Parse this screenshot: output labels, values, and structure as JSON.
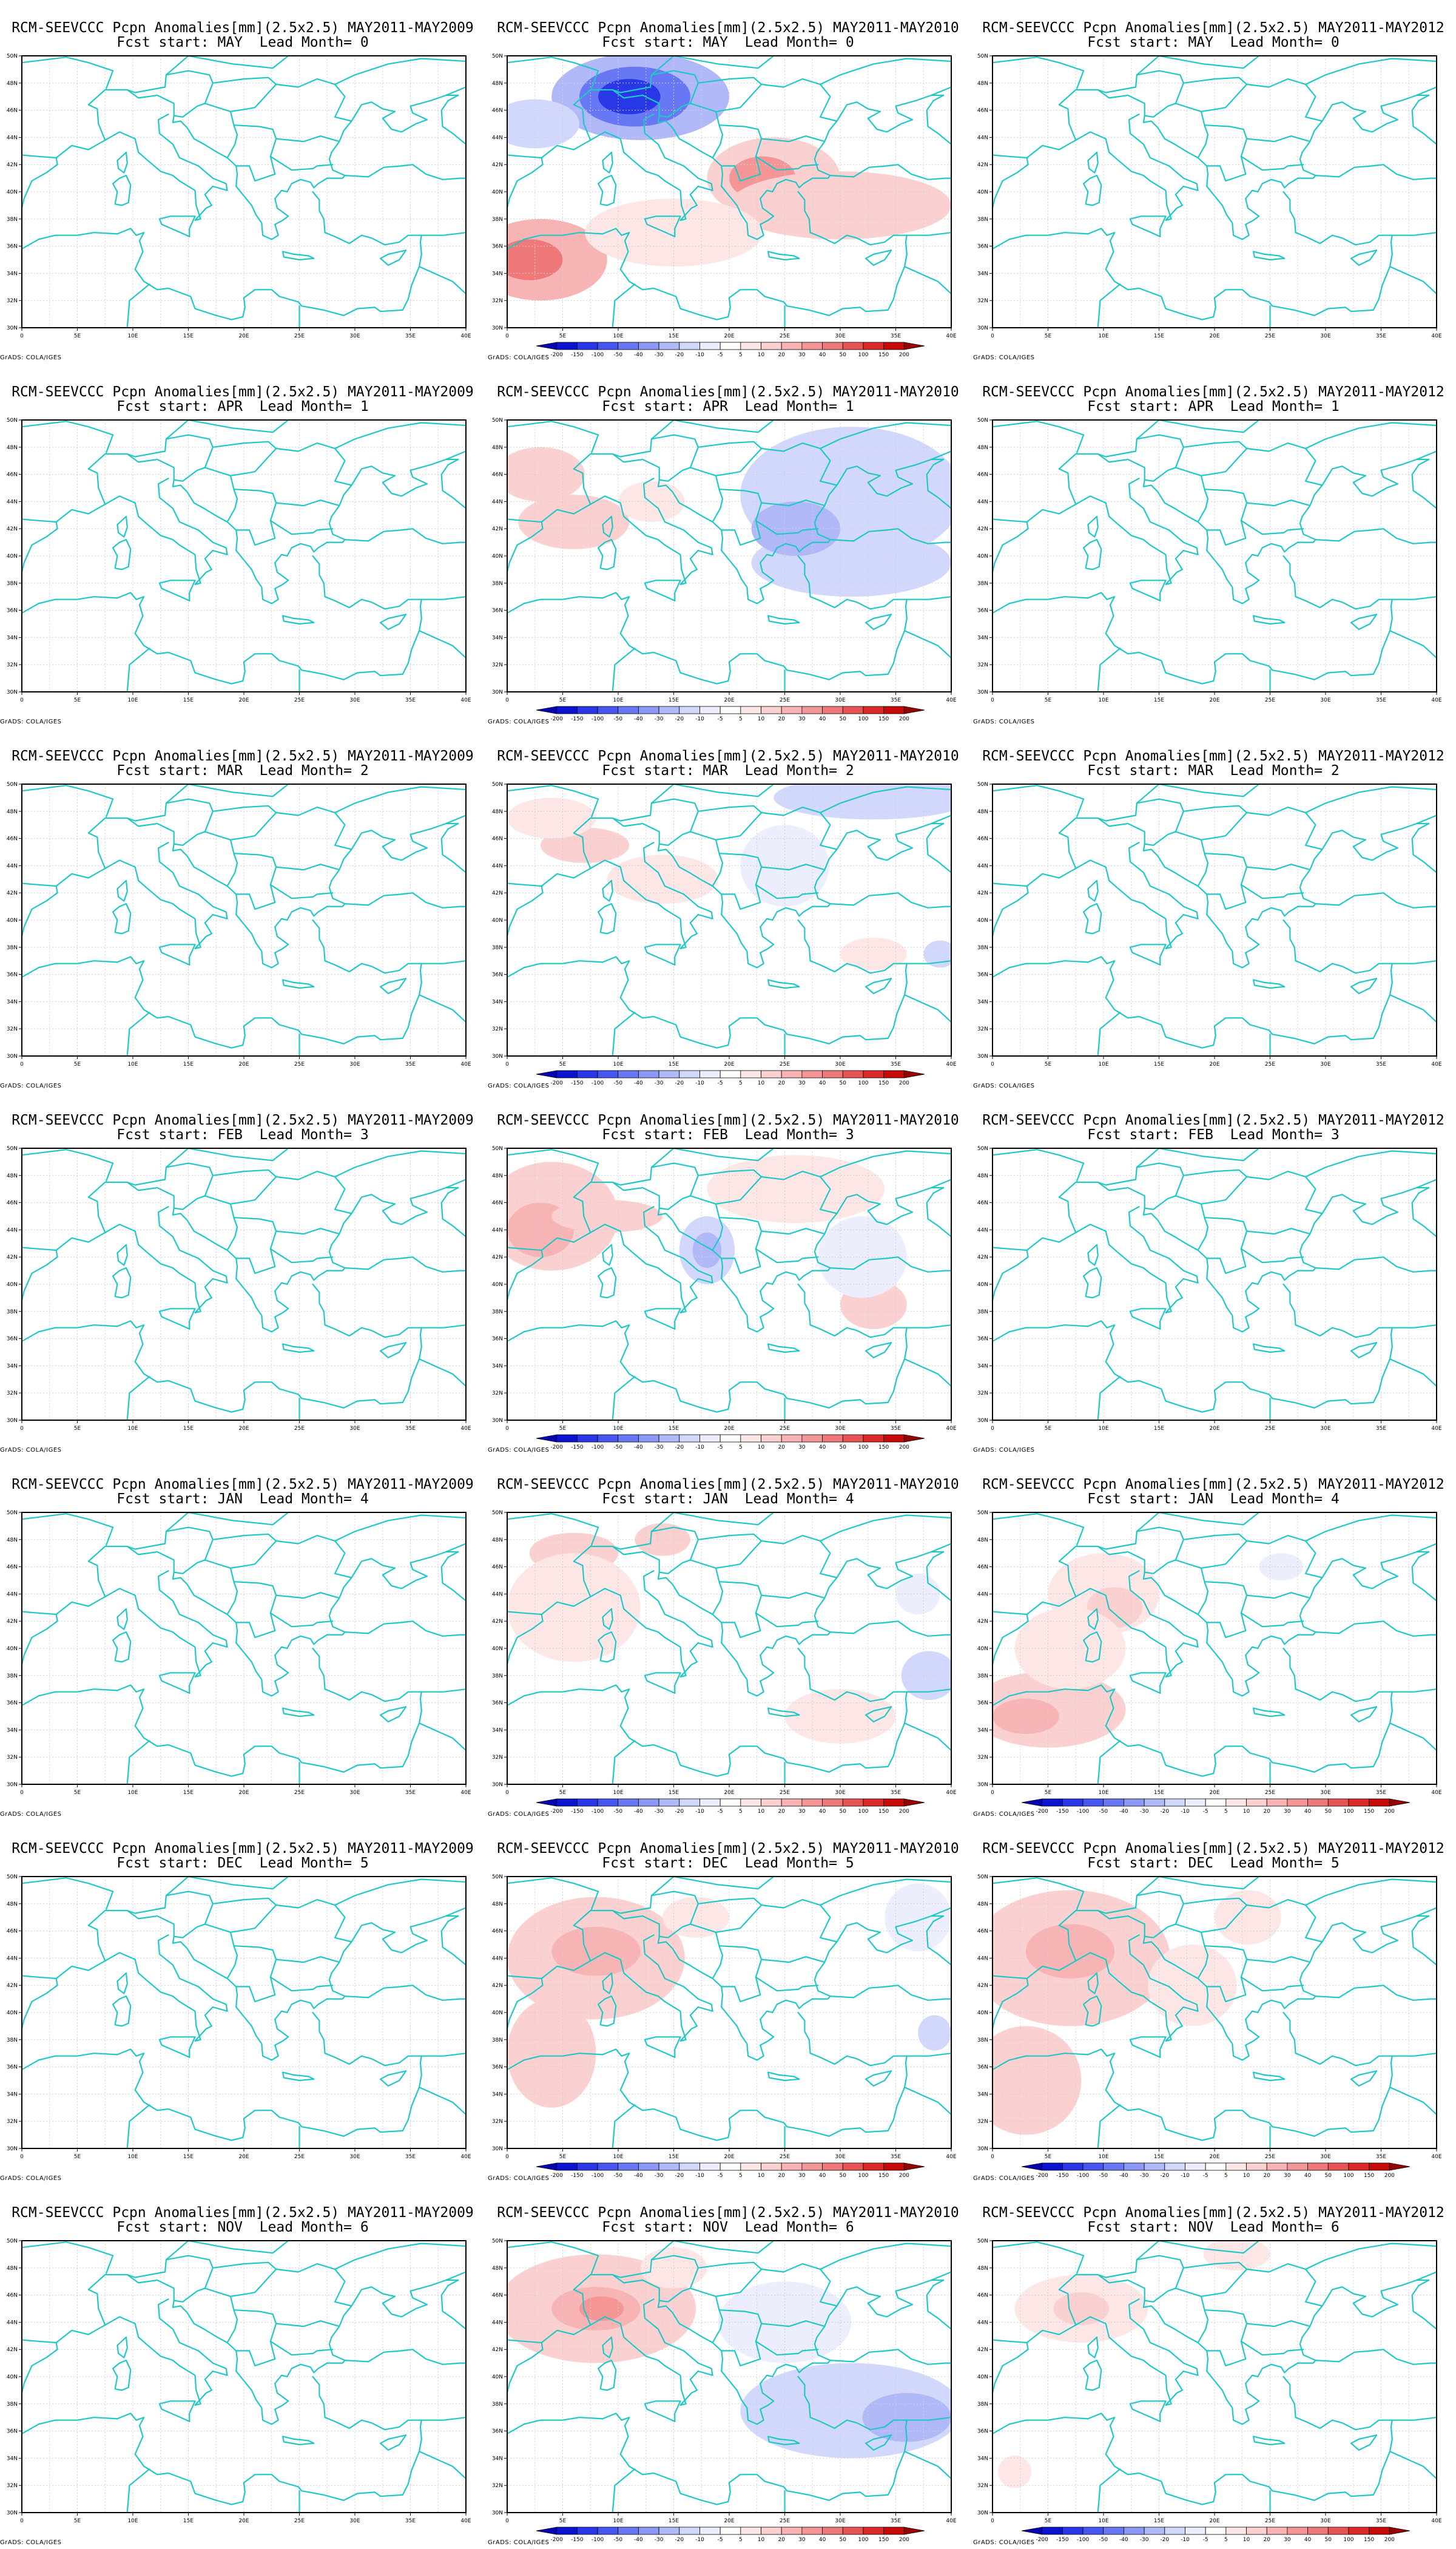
{
  "page": {
    "background": "#ffffff"
  },
  "colors": {
    "coastline": "#1fc7c7",
    "grid": "#cfcfcf",
    "frame": "#000000"
  },
  "chart_data": {
    "type": "heatmap",
    "title_prefix": "RCM-SEEVCCC Pcpn Anomalies[mm](2.5x2.5)",
    "columns": [
      "MAY2011-MAY2009",
      "MAY2011-MAY2010",
      "MAY2011-MAY2012"
    ],
    "rows": [
      {
        "fcst_start": "MAY",
        "lead": 0
      },
      {
        "fcst_start": "APR",
        "lead": 1
      },
      {
        "fcst_start": "MAR",
        "lead": 2
      },
      {
        "fcst_start": "FEB",
        "lead": 3
      },
      {
        "fcst_start": "JAN",
        "lead": 4
      },
      {
        "fcst_start": "DEC",
        "lead": 5
      },
      {
        "fcst_start": "NOV",
        "lead": 6
      }
    ],
    "subtitle_template": "Fcst start: {m}  Lead Month= {n}",
    "xticks": [
      "0",
      "5E",
      "10E",
      "15E",
      "20E",
      "25E",
      "30E",
      "35E",
      "40E"
    ],
    "yticks": [
      "50N",
      "48N",
      "46N",
      "44N",
      "42N",
      "40N",
      "38N",
      "36N",
      "34N",
      "32N",
      "30N"
    ],
    "xlim": [
      0,
      40
    ],
    "ylim": [
      30,
      50
    ],
    "grid": true,
    "credit": "GrADS: COLA/IGES",
    "colorbar": {
      "levels": [
        "-200",
        "-150",
        "-100",
        "-50",
        "-40",
        "-30",
        "-20",
        "-10",
        "-5",
        "5",
        "10",
        "20",
        "30",
        "40",
        "50",
        "100",
        "150",
        "200"
      ],
      "colors": [
        "#0000b4",
        "#0a14d2",
        "#2838e6",
        "#4656f0",
        "#6878f4",
        "#8c98f6",
        "#b0b8f8",
        "#d2d8fb",
        "#eceefd",
        "#ffffff",
        "#fde6e6",
        "#fbd0d0",
        "#f8b4b4",
        "#f49696",
        "#ef7878",
        "#e85454",
        "#dc2828",
        "#c80a0a",
        "#960000"
      ]
    },
    "panels": [
      {
        "row": 0,
        "col": 0,
        "has_colorbar": false,
        "anomalies": []
      },
      {
        "row": 0,
        "col": 1,
        "has_colorbar": true,
        "anomalies": [
          {
            "lon": 12,
            "lat": 47,
            "rx": 8,
            "ry": 3.2,
            "level": -3
          },
          {
            "lon": 11.5,
            "lat": 47,
            "rx": 5,
            "ry": 2.2,
            "level": -5
          },
          {
            "lon": 11,
            "lat": 47,
            "rx": 2.8,
            "ry": 1.3,
            "level": -7
          },
          {
            "lon": 2.5,
            "lat": 45,
            "rx": 4,
            "ry": 1.8,
            "level": -2
          },
          {
            "lon": 24,
            "lat": 41,
            "rx": 6,
            "ry": 3,
            "level": 2
          },
          {
            "lon": 23,
            "lat": 41,
            "rx": 3,
            "ry": 1.6,
            "level": 4
          },
          {
            "lon": 3,
            "lat": 35,
            "rx": 6,
            "ry": 3,
            "level": 3
          },
          {
            "lon": 2,
            "lat": 35,
            "rx": 3,
            "ry": 1.5,
            "level": 5
          },
          {
            "lon": 30,
            "lat": 39,
            "rx": 10,
            "ry": 2.5,
            "level": 2
          },
          {
            "lon": 15,
            "lat": 37,
            "rx": 8,
            "ry": 2.5,
            "level": 1
          }
        ]
      },
      {
        "row": 0,
        "col": 2,
        "has_colorbar": false,
        "anomalies": []
      },
      {
        "row": 1,
        "col": 0,
        "has_colorbar": false,
        "anomalies": []
      },
      {
        "row": 1,
        "col": 1,
        "has_colorbar": true,
        "anomalies": [
          {
            "lon": 31,
            "lat": 44.5,
            "rx": 10,
            "ry": 5,
            "level": -2
          },
          {
            "lon": 31,
            "lat": 39.5,
            "rx": 9,
            "ry": 2.5,
            "level": -2
          },
          {
            "lon": 26,
            "lat": 42,
            "rx": 4,
            "ry": 2,
            "level": -3
          },
          {
            "lon": 3,
            "lat": 46,
            "rx": 4,
            "ry": 2,
            "level": 2
          },
          {
            "lon": 6,
            "lat": 42.5,
            "rx": 5,
            "ry": 2,
            "level": 2
          },
          {
            "lon": 13,
            "lat": 44,
            "rx": 3,
            "ry": 1.5,
            "level": 1
          }
        ]
      },
      {
        "row": 1,
        "col": 2,
        "has_colorbar": false,
        "anomalies": []
      },
      {
        "row": 2,
        "col": 0,
        "has_colorbar": false,
        "anomalies": []
      },
      {
        "row": 2,
        "col": 1,
        "has_colorbar": true,
        "anomalies": [
          {
            "lon": 33,
            "lat": 49,
            "rx": 9,
            "ry": 1.6,
            "level": -2
          },
          {
            "lon": 7,
            "lat": 45.5,
            "rx": 4,
            "ry": 1.3,
            "level": 2
          },
          {
            "lon": 4,
            "lat": 47.5,
            "rx": 4,
            "ry": 1.5,
            "level": 1
          },
          {
            "lon": 14,
            "lat": 43,
            "rx": 5,
            "ry": 1.8,
            "level": 1
          },
          {
            "lon": 33,
            "lat": 37.5,
            "rx": 3,
            "ry": 1.2,
            "level": 1
          },
          {
            "lon": 39,
            "lat": 37.5,
            "rx": 1.5,
            "ry": 1,
            "level": -2
          },
          {
            "lon": 25,
            "lat": 44,
            "rx": 4,
            "ry": 3,
            "level": -1
          }
        ]
      },
      {
        "row": 2,
        "col": 2,
        "has_colorbar": false,
        "anomalies": []
      },
      {
        "row": 3,
        "col": 0,
        "has_colorbar": false,
        "anomalies": []
      },
      {
        "row": 3,
        "col": 1,
        "has_colorbar": true,
        "anomalies": [
          {
            "lon": 4,
            "lat": 45,
            "rx": 6,
            "ry": 4,
            "level": 2
          },
          {
            "lon": 3,
            "lat": 44,
            "rx": 3,
            "ry": 2,
            "level": 3
          },
          {
            "lon": 9,
            "lat": 45,
            "rx": 5,
            "ry": 1.2,
            "level": 2
          },
          {
            "lon": 18,
            "lat": 42.5,
            "rx": 2.5,
            "ry": 2.5,
            "level": -2
          },
          {
            "lon": 18,
            "lat": 42.5,
            "rx": 1.3,
            "ry": 1.3,
            "level": -3
          },
          {
            "lon": 33,
            "lat": 38.5,
            "rx": 3,
            "ry": 1.8,
            "level": 2
          },
          {
            "lon": 26,
            "lat": 47,
            "rx": 8,
            "ry": 2.5,
            "level": 1
          },
          {
            "lon": 32,
            "lat": 42,
            "rx": 4,
            "ry": 3,
            "level": -1
          }
        ]
      },
      {
        "row": 3,
        "col": 2,
        "has_colorbar": false,
        "anomalies": []
      },
      {
        "row": 4,
        "col": 0,
        "has_colorbar": false,
        "anomalies": []
      },
      {
        "row": 4,
        "col": 1,
        "has_colorbar": true,
        "anomalies": [
          {
            "lon": 6,
            "lat": 47,
            "rx": 4,
            "ry": 1.5,
            "level": 2
          },
          {
            "lon": 14,
            "lat": 48,
            "rx": 2.5,
            "ry": 1.2,
            "level": 2
          },
          {
            "lon": 6,
            "lat": 43,
            "rx": 6,
            "ry": 4,
            "level": 1
          },
          {
            "lon": 38,
            "lat": 38,
            "rx": 2.5,
            "ry": 1.8,
            "level": -2
          },
          {
            "lon": 37,
            "lat": 44,
            "rx": 2,
            "ry": 1.5,
            "level": -1
          },
          {
            "lon": 30,
            "lat": 35,
            "rx": 5,
            "ry": 2,
            "level": 1
          }
        ]
      },
      {
        "row": 4,
        "col": 2,
        "has_colorbar": true,
        "anomalies": [
          {
            "lon": 5,
            "lat": 35.5,
            "rx": 7,
            "ry": 2.8,
            "level": 2
          },
          {
            "lon": 3,
            "lat": 35,
            "rx": 3,
            "ry": 1.3,
            "level": 3
          },
          {
            "lon": 10,
            "lat": 44,
            "rx": 5,
            "ry": 3,
            "level": 1
          },
          {
            "lon": 11,
            "lat": 43,
            "rx": 2.5,
            "ry": 1.5,
            "level": 2
          },
          {
            "lon": 7,
            "lat": 40,
            "rx": 5,
            "ry": 3,
            "level": 1
          },
          {
            "lon": 26,
            "lat": 46,
            "rx": 2,
            "ry": 1,
            "level": -1
          }
        ]
      },
      {
        "row": 5,
        "col": 0,
        "has_colorbar": false,
        "anomalies": []
      },
      {
        "row": 5,
        "col": 1,
        "has_colorbar": true,
        "anomalies": [
          {
            "lon": 8,
            "lat": 44,
            "rx": 8,
            "ry": 4.5,
            "level": 2
          },
          {
            "lon": 8,
            "lat": 44.5,
            "rx": 4,
            "ry": 1.8,
            "level": 3
          },
          {
            "lon": 4,
            "lat": 37,
            "rx": 4,
            "ry": 4,
            "level": 2
          },
          {
            "lon": 37,
            "lat": 47,
            "rx": 3,
            "ry": 2.5,
            "level": -1
          },
          {
            "lon": 38.5,
            "lat": 38.5,
            "rx": 1.5,
            "ry": 1.3,
            "level": -2
          },
          {
            "lon": 17,
            "lat": 47,
            "rx": 3,
            "ry": 1.5,
            "level": 1
          }
        ]
      },
      {
        "row": 5,
        "col": 2,
        "has_colorbar": true,
        "anomalies": [
          {
            "lon": 7,
            "lat": 44,
            "rx": 9,
            "ry": 5,
            "level": 2
          },
          {
            "lon": 7,
            "lat": 44.5,
            "rx": 4,
            "ry": 2,
            "level": 3
          },
          {
            "lon": 3,
            "lat": 35,
            "rx": 5,
            "ry": 4,
            "level": 2
          },
          {
            "lon": 18,
            "lat": 42,
            "rx": 4,
            "ry": 3,
            "level": 1
          },
          {
            "lon": 23,
            "lat": 47,
            "rx": 3,
            "ry": 2,
            "level": 1
          }
        ]
      },
      {
        "row": 6,
        "col": 0,
        "has_colorbar": false,
        "anomalies": []
      },
      {
        "row": 6,
        "col": 1,
        "has_colorbar": true,
        "anomalies": [
          {
            "lon": 8,
            "lat": 45,
            "rx": 9,
            "ry": 4,
            "level": 2
          },
          {
            "lon": 8,
            "lat": 45,
            "rx": 4,
            "ry": 1.6,
            "level": 3
          },
          {
            "lon": 8.5,
            "lat": 45,
            "rx": 2,
            "ry": 0.9,
            "level": 4
          },
          {
            "lon": 31,
            "lat": 37.5,
            "rx": 10,
            "ry": 3.5,
            "level": -2
          },
          {
            "lon": 36,
            "lat": 37,
            "rx": 4,
            "ry": 1.8,
            "level": -3
          },
          {
            "lon": 25,
            "lat": 44,
            "rx": 6,
            "ry": 3,
            "level": -1
          },
          {
            "lon": 15,
            "lat": 48,
            "rx": 3,
            "ry": 1.5,
            "level": 1
          }
        ]
      },
      {
        "row": 6,
        "col": 2,
        "has_colorbar": true,
        "anomalies": [
          {
            "lon": 8,
            "lat": 45,
            "rx": 6,
            "ry": 2.5,
            "level": 1
          },
          {
            "lon": 8,
            "lat": 45,
            "rx": 2.5,
            "ry": 1.2,
            "level": 2
          },
          {
            "lon": 22,
            "lat": 49,
            "rx": 3,
            "ry": 1.2,
            "level": 1
          },
          {
            "lon": 2,
            "lat": 33,
            "rx": 1.5,
            "ry": 1.2,
            "level": 1
          }
        ]
      }
    ]
  }
}
